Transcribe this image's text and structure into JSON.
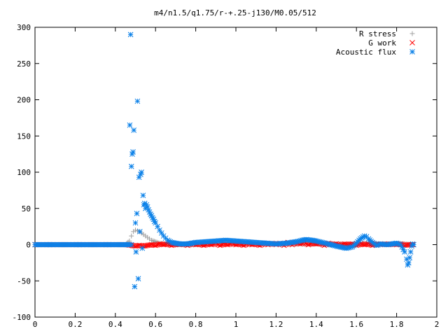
{
  "chart_data": {
    "type": "scatter",
    "title": "m4/n1.5/q1.75/r-+.25-j130/M0.05/512",
    "xlabel": "",
    "ylabel": "",
    "xlim": [
      0,
      2
    ],
    "ylim": [
      -100,
      300
    ],
    "x_ticks": [
      0,
      0.2,
      0.4,
      0.6,
      0.8,
      1,
      1.2,
      1.4,
      1.6,
      1.8,
      2
    ],
    "x_tick_labels": [
      "0",
      "0.2",
      "0.4",
      "0.6",
      "0.8",
      "1",
      "1.2",
      "1.4",
      "1.6",
      "1.8",
      "2"
    ],
    "y_ticks": [
      -100,
      -50,
      0,
      50,
      100,
      150,
      200,
      250,
      300
    ],
    "y_tick_labels": [
      "-100",
      "-50",
      "0",
      "50",
      "100",
      "150",
      "200",
      "250",
      "300"
    ],
    "grid": false,
    "legend_position": "top-right",
    "series": [
      {
        "name": "R stress",
        "marker": "plus",
        "color": "#a0a0a0",
        "x": [
          0.0,
          0.05,
          0.1,
          0.15,
          0.2,
          0.25,
          0.3,
          0.35,
          0.4,
          0.45,
          0.47,
          0.48,
          0.49,
          0.5,
          0.51,
          0.52,
          0.53,
          0.54,
          0.55,
          0.56,
          0.57,
          0.58,
          0.6,
          0.62,
          0.65,
          0.7,
          0.75,
          0.8,
          0.85,
          0.9,
          0.95,
          1.0,
          1.05,
          1.1,
          1.15,
          1.2,
          1.25,
          1.3,
          1.35,
          1.4,
          1.45,
          1.5,
          1.55,
          1.6,
          1.65,
          1.7,
          1.75,
          1.8,
          1.85,
          1.88
        ],
        "y": [
          0,
          0,
          0,
          0,
          0,
          0,
          0,
          0,
          0,
          0,
          5,
          12,
          18,
          20,
          19,
          18,
          16,
          14,
          12,
          10,
          8,
          6,
          4,
          2,
          1,
          0,
          0,
          0,
          1,
          2,
          2,
          2,
          1,
          1,
          1,
          1,
          1,
          1,
          1,
          1,
          1,
          1,
          1,
          1,
          2,
          1,
          1,
          1,
          1,
          0
        ]
      },
      {
        "name": "G work",
        "marker": "cross",
        "color": "#ff0000",
        "x": [
          0.0,
          0.05,
          0.1,
          0.15,
          0.2,
          0.25,
          0.3,
          0.35,
          0.4,
          0.45,
          0.48,
          0.5,
          0.52,
          0.54,
          0.56,
          0.58,
          0.6,
          0.62,
          0.64,
          0.66,
          0.68,
          0.7,
          0.72,
          0.74,
          0.76,
          0.78,
          0.8,
          0.82,
          0.84,
          0.86,
          0.88,
          0.9,
          0.92,
          0.94,
          0.96,
          0.98,
          1.0,
          1.02,
          1.04,
          1.06,
          1.08,
          1.1,
          1.12,
          1.14,
          1.16,
          1.18,
          1.2,
          1.22,
          1.24,
          1.26,
          1.28,
          1.3,
          1.32,
          1.34,
          1.36,
          1.38,
          1.4,
          1.42,
          1.44,
          1.46,
          1.48,
          1.5,
          1.52,
          1.54,
          1.56,
          1.58,
          1.6,
          1.62,
          1.64,
          1.66,
          1.68,
          1.7,
          1.72,
          1.74,
          1.76,
          1.78,
          1.8,
          1.82,
          1.84,
          1.86,
          1.88
        ],
        "y": [
          0,
          0,
          0,
          0,
          0,
          0,
          0,
          0,
          0,
          0,
          -1,
          -2,
          -1,
          -2,
          -1,
          0,
          -1,
          1,
          0,
          1,
          -1,
          1,
          0,
          1,
          -1,
          2,
          0,
          1,
          -1,
          1,
          0,
          2,
          -1,
          1,
          0,
          2,
          0,
          1,
          -1,
          2,
          0,
          1,
          -1,
          2,
          0,
          2,
          0,
          2,
          -1,
          3,
          0,
          3,
          1,
          3,
          0,
          2,
          1,
          2,
          -1,
          2,
          0,
          1,
          -1,
          1,
          0,
          1,
          -1,
          1,
          0,
          1,
          -1,
          1,
          0,
          1,
          0,
          1,
          0,
          1,
          -1,
          0,
          0
        ]
      },
      {
        "name": "Acoustic flux",
        "marker": "star",
        "color": "#0a80e8",
        "x": [
          0.0,
          0.05,
          0.1,
          0.15,
          0.2,
          0.25,
          0.3,
          0.35,
          0.4,
          0.45,
          0.47,
          0.48,
          0.472,
          0.476,
          0.48,
          0.484,
          0.488,
          0.492,
          0.496,
          0.5,
          0.503,
          0.507,
          0.51,
          0.514,
          0.518,
          0.522,
          0.526,
          0.53,
          0.534,
          0.538,
          0.542,
          0.546,
          0.55,
          0.555,
          0.56,
          0.565,
          0.57,
          0.575,
          0.58,
          0.585,
          0.59,
          0.595,
          0.6,
          0.61,
          0.62,
          0.63,
          0.64,
          0.65,
          0.66,
          0.68,
          0.7,
          0.72,
          0.74,
          0.76,
          0.78,
          0.8,
          0.85,
          0.9,
          0.95,
          1.0,
          1.05,
          1.1,
          1.15,
          1.2,
          1.25,
          1.3,
          1.33,
          1.35,
          1.38,
          1.4,
          1.43,
          1.46,
          1.5,
          1.55,
          1.58,
          1.6,
          1.62,
          1.64,
          1.65,
          1.66,
          1.68,
          1.7,
          1.72,
          1.75,
          1.78,
          1.8,
          1.82,
          1.84,
          1.85,
          1.855,
          1.86,
          1.865,
          1.87,
          1.875,
          1.88,
          1.885
        ],
        "y": [
          0,
          0,
          0,
          0,
          0,
          0,
          0,
          0,
          0,
          0,
          0,
          0,
          165,
          290,
          108,
          125,
          128,
          158,
          -58,
          30,
          -10,
          43,
          198,
          -47,
          93,
          18,
          97,
          100,
          -5,
          68,
          55,
          57,
          50,
          55,
          52,
          48,
          45,
          42,
          40,
          37,
          35,
          32,
          30,
          25,
          20,
          16,
          12,
          9,
          6,
          3,
          2,
          1,
          1,
          1,
          2,
          3,
          4,
          5,
          6,
          5,
          4,
          3,
          2,
          1,
          2,
          4,
          6,
          7,
          6,
          5,
          3,
          1,
          -2,
          -5,
          -3,
          2,
          8,
          12,
          11,
          8,
          3,
          -1,
          1,
          0,
          1,
          2,
          0,
          -10,
          -20,
          -28,
          -25,
          -18,
          -10,
          -2,
          1,
          0
        ]
      }
    ]
  }
}
